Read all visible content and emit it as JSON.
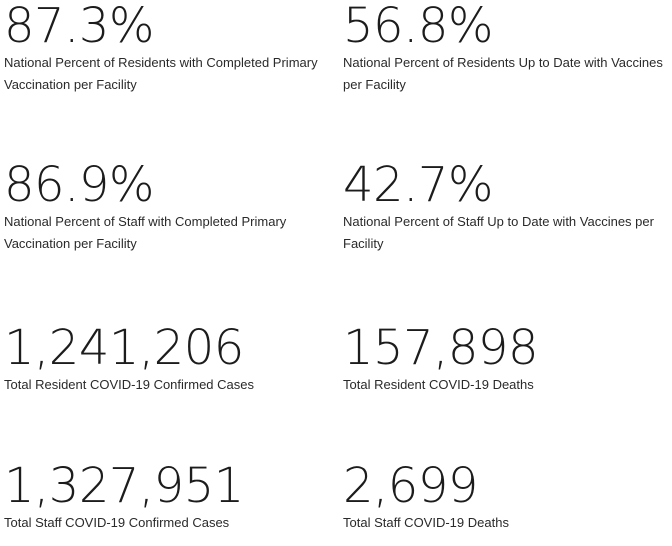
{
  "stats": [
    {
      "value": "87.3%",
      "label": "National Percent of Residents with Completed Primary Vaccination per Facility"
    },
    {
      "value": "56.8%",
      "label": "National Percent of Residents Up to Date with Vaccines per Facility"
    },
    {
      "value": "86.9%",
      "label": "National Percent of Staff with Completed Primary Vaccination per Facility"
    },
    {
      "value": "42.7%",
      "label": "National Percent of Staff Up to Date with Vaccines per Facility"
    },
    {
      "value": "1,241,206",
      "label": "Total Resident COVID-19 Confirmed Cases"
    },
    {
      "value": "157,898",
      "label": "Total Resident COVID-19 Deaths"
    },
    {
      "value": "1,327,951",
      "label": "Total Staff COVID-19 Confirmed Cases"
    },
    {
      "value": "2,699",
      "label": "Total Staff COVID-19 Deaths"
    }
  ]
}
